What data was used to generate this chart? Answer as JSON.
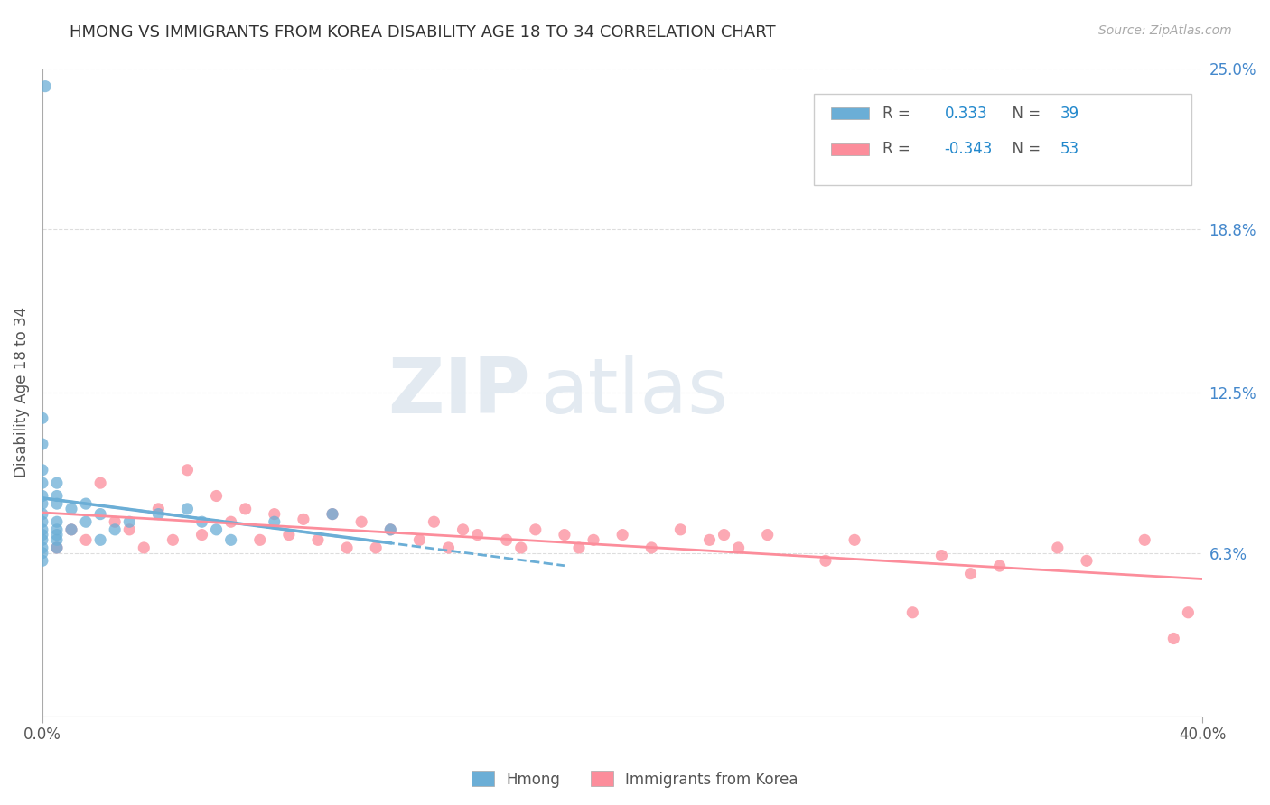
{
  "title": "HMONG VS IMMIGRANTS FROM KOREA DISABILITY AGE 18 TO 34 CORRELATION CHART",
  "source_text": "Source: ZipAtlas.com",
  "ylabel": "Disability Age 18 to 34",
  "xmin": 0.0,
  "xmax": 0.4,
  "ymin": 0.0,
  "ymax": 0.25,
  "y_tick_labels_right": [
    "6.3%",
    "12.5%",
    "18.8%",
    "25.0%"
  ],
  "y_tick_values_right": [
    0.063,
    0.125,
    0.188,
    0.25
  ],
  "hmong_color": "#6baed6",
  "korea_color": "#fc8d9b",
  "hmong_R": 0.333,
  "hmong_N": 39,
  "korea_R": -0.343,
  "korea_N": 53,
  "legend_label_hmong": "Hmong",
  "legend_label_korea": "Immigrants from Korea",
  "watermark_zip": "ZIP",
  "watermark_atlas": "atlas",
  "hmong_scatter_x": [
    0.001,
    0.0,
    0.0,
    0.0,
    0.0,
    0.0,
    0.0,
    0.0,
    0.0,
    0.0,
    0.0,
    0.0,
    0.0,
    0.0,
    0.0,
    0.005,
    0.005,
    0.005,
    0.005,
    0.005,
    0.005,
    0.005,
    0.005,
    0.01,
    0.01,
    0.015,
    0.015,
    0.02,
    0.02,
    0.025,
    0.03,
    0.04,
    0.05,
    0.055,
    0.06,
    0.065,
    0.08,
    0.1,
    0.12
  ],
  "hmong_scatter_y": [
    0.243,
    0.115,
    0.105,
    0.095,
    0.09,
    0.085,
    0.082,
    0.078,
    0.075,
    0.072,
    0.07,
    0.068,
    0.065,
    0.063,
    0.06,
    0.09,
    0.085,
    0.082,
    0.075,
    0.072,
    0.07,
    0.068,
    0.065,
    0.08,
    0.072,
    0.082,
    0.075,
    0.078,
    0.068,
    0.072,
    0.075,
    0.078,
    0.08,
    0.075,
    0.072,
    0.068,
    0.075,
    0.078,
    0.072
  ],
  "korea_scatter_x": [
    0.005,
    0.01,
    0.015,
    0.02,
    0.025,
    0.03,
    0.035,
    0.04,
    0.045,
    0.05,
    0.055,
    0.06,
    0.065,
    0.07,
    0.075,
    0.08,
    0.085,
    0.09,
    0.095,
    0.1,
    0.105,
    0.11,
    0.115,
    0.12,
    0.13,
    0.135,
    0.14,
    0.145,
    0.15,
    0.16,
    0.165,
    0.17,
    0.18,
    0.185,
    0.19,
    0.2,
    0.21,
    0.22,
    0.23,
    0.235,
    0.24,
    0.25,
    0.27,
    0.28,
    0.3,
    0.31,
    0.32,
    0.33,
    0.35,
    0.36,
    0.38,
    0.39,
    0.395
  ],
  "korea_scatter_y": [
    0.065,
    0.072,
    0.068,
    0.09,
    0.075,
    0.072,
    0.065,
    0.08,
    0.068,
    0.095,
    0.07,
    0.085,
    0.075,
    0.08,
    0.068,
    0.078,
    0.07,
    0.076,
    0.068,
    0.078,
    0.065,
    0.075,
    0.065,
    0.072,
    0.068,
    0.075,
    0.065,
    0.072,
    0.07,
    0.068,
    0.065,
    0.072,
    0.07,
    0.065,
    0.068,
    0.07,
    0.065,
    0.072,
    0.068,
    0.07,
    0.065,
    0.07,
    0.06,
    0.068,
    0.04,
    0.062,
    0.055,
    0.058,
    0.065,
    0.06,
    0.068,
    0.03,
    0.04
  ],
  "background_color": "#ffffff",
  "grid_color": "#dddddd",
  "legend_r_color": "#2288cc",
  "legend_n_color": "#2288cc"
}
